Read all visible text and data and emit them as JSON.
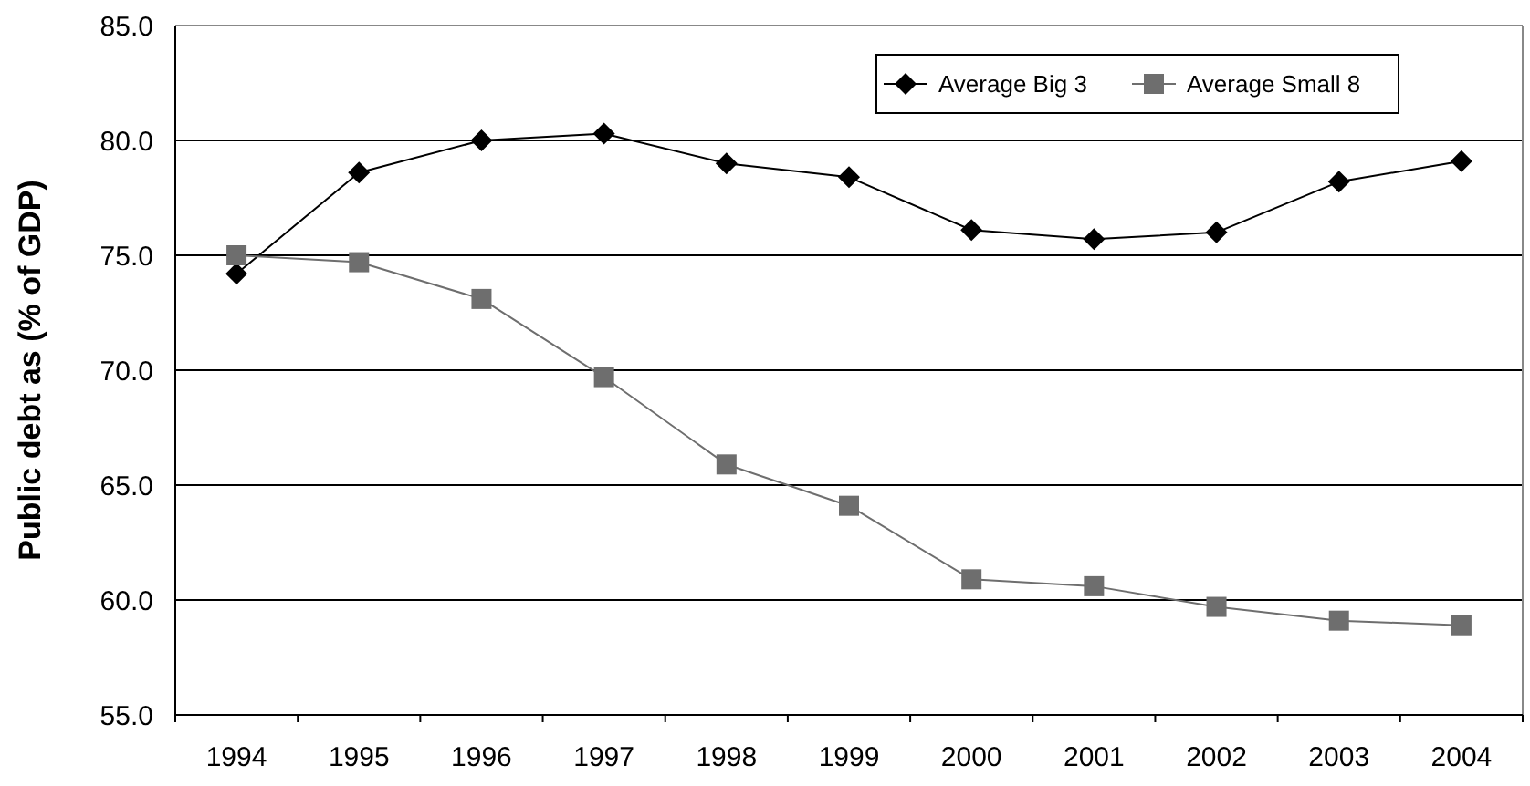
{
  "chart_data": {
    "type": "line",
    "ylabel": "Public debt as (% of GDP)",
    "categories": [
      "1994",
      "1995",
      "1996",
      "1997",
      "1998",
      "1999",
      "2000",
      "2001",
      "2002",
      "2003",
      "2004"
    ],
    "series": [
      {
        "name": "Average Big 3",
        "color": "#000000",
        "marker": "diamond",
        "values": [
          74.2,
          78.6,
          80.0,
          80.3,
          79.0,
          78.4,
          76.1,
          75.7,
          76.0,
          78.2,
          79.1
        ]
      },
      {
        "name": "Average Small 8",
        "color": "#6e6e6e",
        "marker": "square",
        "values": [
          75.0,
          74.7,
          73.1,
          69.7,
          65.9,
          64.1,
          60.9,
          60.6,
          59.7,
          59.1,
          58.9
        ]
      }
    ],
    "ylim": [
      55,
      85
    ],
    "yticks": [
      {
        "value": 55,
        "label": "55.0"
      },
      {
        "value": 60,
        "label": "60.0"
      },
      {
        "value": 65,
        "label": "65.0"
      },
      {
        "value": 70,
        "label": "70.0"
      },
      {
        "value": 75,
        "label": "75.0"
      },
      {
        "value": 80,
        "label": "80.0"
      },
      {
        "value": 85,
        "label": "85.0"
      }
    ],
    "grid": "y",
    "legend": "top right"
  }
}
